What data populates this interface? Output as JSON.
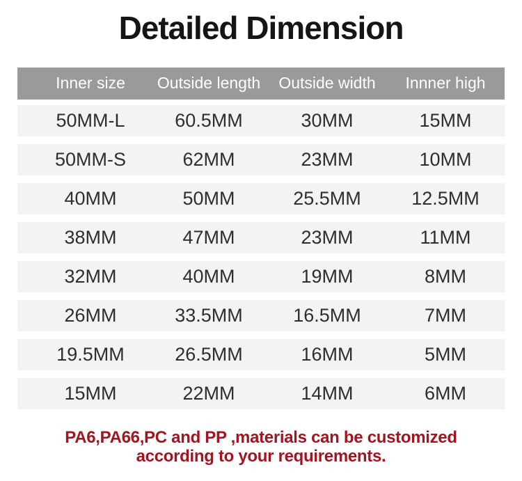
{
  "title": "Detailed Dimension",
  "table": {
    "headers": [
      "Inner size",
      "Outside length",
      "Outside width",
      "Innner high"
    ],
    "rows": [
      [
        "50MM-L",
        "60.5MM",
        "30MM",
        "15MM"
      ],
      [
        "50MM-S",
        "62MM",
        "23MM",
        "10MM"
      ],
      [
        "40MM",
        "50MM",
        "25.5MM",
        "12.5MM"
      ],
      [
        "38MM",
        "47MM",
        "23MM",
        "11MM"
      ],
      [
        "32MM",
        "40MM",
        "19MM",
        "8MM"
      ],
      [
        "26MM",
        "33.5MM",
        "16.5MM",
        "7MM"
      ],
      [
        "19.5MM",
        "26.5MM",
        "16MM",
        "5MM"
      ],
      [
        "15MM",
        "22MM",
        "14MM",
        "6MM"
      ]
    ]
  },
  "footer": {
    "line1": "PA6,PA66,PC and PP ,materials can be customized",
    "line2": "according to your requirements."
  },
  "colors": {
    "header_bg": "#9a9a9a",
    "header_text": "#ffffff",
    "row_bg": "#f3f3f3",
    "cell_text": "#2e2e2e",
    "title_text": "#151515",
    "footer_text": "#a3141f",
    "page_bg": "#ffffff"
  }
}
